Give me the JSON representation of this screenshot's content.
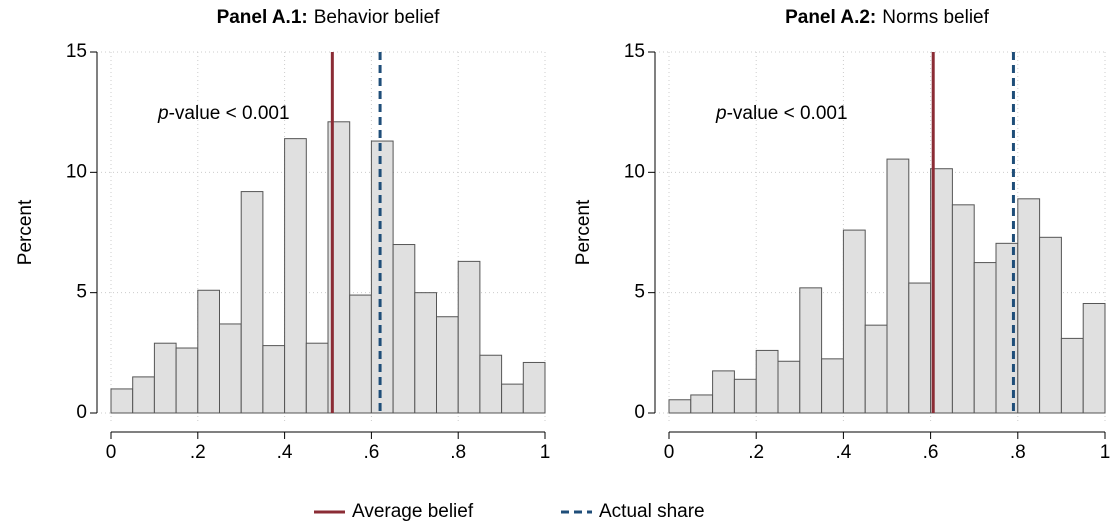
{
  "chart_data": [
    {
      "type": "histogram",
      "panel": "Panel A.1:",
      "title": "Behavior belief",
      "ylabel": "Percent",
      "annotation": {
        "italic": "p",
        "text": "-value < 0.001"
      },
      "bins": [
        0,
        0.05,
        0.1,
        0.15,
        0.2,
        0.25,
        0.3,
        0.35,
        0.4,
        0.45,
        0.5,
        0.55,
        0.6,
        0.65,
        0.7,
        0.75,
        0.8,
        0.85,
        0.9,
        0.95,
        1
      ],
      "values": [
        1.0,
        1.5,
        2.9,
        2.7,
        5.1,
        3.7,
        9.2,
        2.8,
        11.4,
        2.9,
        12.1,
        4.9,
        11.3,
        7.0,
        5.0,
        4.0,
        6.3,
        2.4,
        1.2,
        2.1
      ],
      "reference_lines": [
        0.51,
        0.62
      ],
      "color": "#e0e0e0",
      "edgecolor": "#555555",
      "xlim": [
        0,
        1
      ],
      "xticks": [
        0,
        {
          "value": 0.2,
          "label": ".2"
        },
        {
          "value": 0.4,
          "label": ".4"
        },
        {
          "value": 0.6,
          "label": ".6"
        },
        {
          "value": 0.8,
          "label": ".8"
        },
        1
      ],
      "ylim": [
        0,
        15
      ],
      "yticks": [
        0,
        5,
        10,
        15
      ],
      "grid": true
    },
    {
      "type": "histogram",
      "panel": "Panel A.2:",
      "title": "Norms belief",
      "ylabel": "Percent",
      "annotation": {
        "italic": "p",
        "text": "-value < 0.001"
      },
      "bins": [
        0,
        0.05,
        0.1,
        0.15,
        0.2,
        0.25,
        0.3,
        0.35,
        0.4,
        0.45,
        0.5,
        0.55,
        0.6,
        0.65,
        0.7,
        0.75,
        0.8,
        0.85,
        0.9,
        0.95,
        1
      ],
      "values": [
        0.55,
        0.75,
        1.75,
        1.4,
        2.6,
        2.15,
        5.2,
        2.25,
        7.6,
        3.65,
        10.55,
        5.4,
        10.15,
        8.65,
        6.25,
        7.05,
        8.9,
        7.3,
        3.1,
        4.55
      ],
      "reference_lines": [
        0.606,
        0.79
      ],
      "color": "#e0e0e0",
      "edgecolor": "#555555",
      "xlim": [
        0,
        1
      ],
      "xticks": [
        0,
        {
          "value": 0.2,
          "label": ".2"
        },
        {
          "value": 0.4,
          "label": ".4"
        },
        {
          "value": 0.6,
          "label": ".6"
        },
        {
          "value": 0.8,
          "label": ".8"
        },
        1
      ],
      "ylim": [
        0,
        15
      ],
      "yticks": [
        0,
        5,
        10,
        15
      ],
      "grid": true
    }
  ],
  "legend": [
    {
      "name": "Average belief",
      "color": "#8b2c35",
      "style": "solid"
    },
    {
      "name": "Actual share",
      "color": "#1f4e79",
      "style": "dashed"
    }
  ]
}
